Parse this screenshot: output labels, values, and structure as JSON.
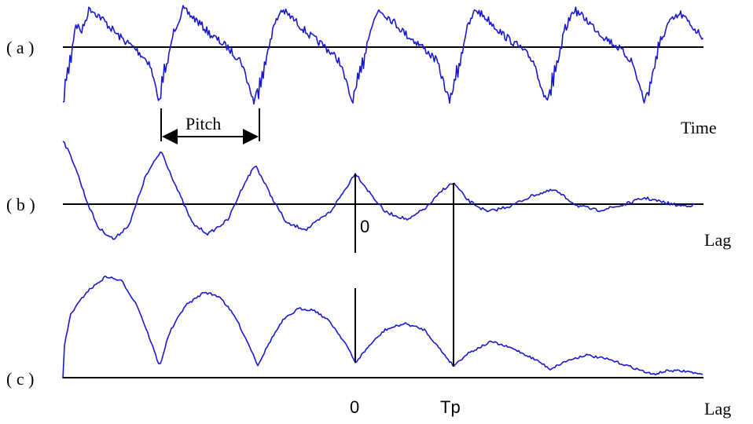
{
  "figure": {
    "panel_a_label": "( a )",
    "panel_b_label": "( b )",
    "panel_c_label": "( c )",
    "time_label": "Time",
    "lag_label_b": "Lag",
    "lag_label_c": "Lag",
    "pitch_label": "Pitch",
    "zero_label_b": "0",
    "zero_label_c": "0",
    "tp_label": "Tp",
    "wave_color": "#1a1acc"
  }
}
